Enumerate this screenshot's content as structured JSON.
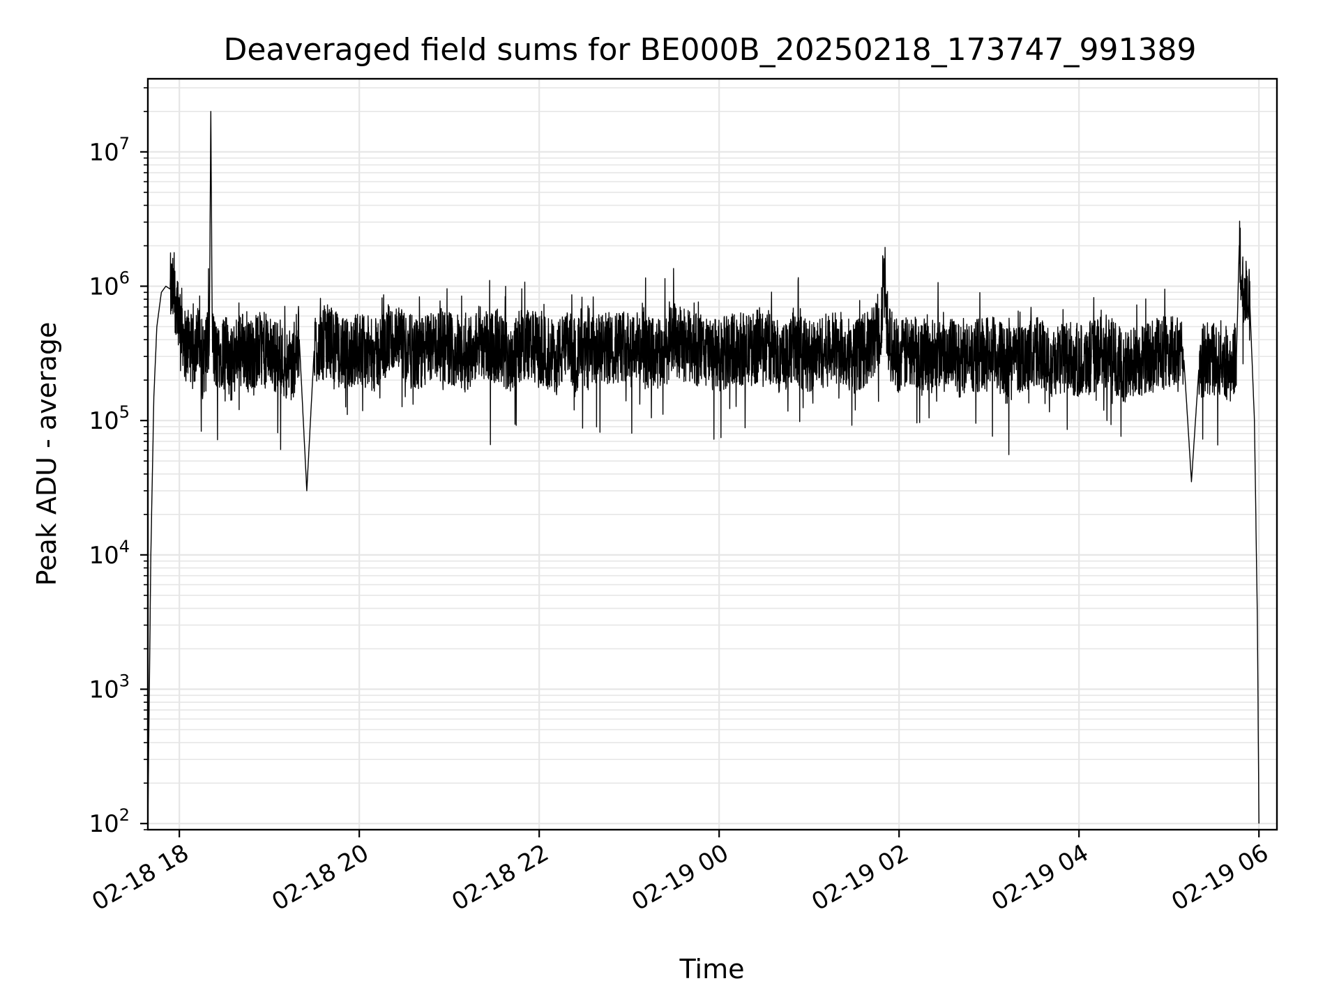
{
  "chart_data": {
    "type": "line",
    "title": "Deaveraged field sums for BE000B_20250218_173747_991389",
    "xlabel": "Time",
    "ylabel": "Peak ADU - average",
    "y_scale": "log",
    "ylim": [
      90,
      35000000
    ],
    "xlim": [
      "2025-02-18 17:39",
      "2025-02-19 06:12"
    ],
    "grid": true,
    "series_color": "#000000",
    "grid_color": "#e6e6e6",
    "x_ticks": [
      {
        "value": "2025-02-18 18:00",
        "label": "02-18 18"
      },
      {
        "value": "2025-02-18 20:00",
        "label": "02-18 20"
      },
      {
        "value": "2025-02-18 22:00",
        "label": "02-18 22"
      },
      {
        "value": "2025-02-19 00:00",
        "label": "02-19 00"
      },
      {
        "value": "2025-02-19 02:00",
        "label": "02-19 02"
      },
      {
        "value": "2025-02-19 04:00",
        "label": "02-19 04"
      },
      {
        "value": "2025-02-19 06:00",
        "label": "02-19 06"
      }
    ],
    "y_ticks": [
      {
        "value": 100,
        "base": "10",
        "exp": "2"
      },
      {
        "value": 1000,
        "base": "10",
        "exp": "3"
      },
      {
        "value": 10000,
        "base": "10",
        "exp": "4"
      },
      {
        "value": 100000,
        "base": "10",
        "exp": "5"
      },
      {
        "value": 1000000,
        "base": "10",
        "exp": "6"
      },
      {
        "value": 10000000,
        "base": "10",
        "exp": "7"
      }
    ],
    "series": [
      {
        "x": [
          "2025-02-18 17:39",
          "2025-02-18 17:41",
          "2025-02-18 17:43",
          "2025-02-18 17:45",
          "2025-02-18 17:48",
          "2025-02-18 17:51",
          "2025-02-18 17:54",
          "2025-02-18 17:58",
          "2025-02-18 18:02",
          "2025-02-18 18:04",
          "2025-02-18 18:06",
          "2025-02-18 18:09",
          "2025-02-18 18:12",
          "2025-02-18 18:15",
          "2025-02-18 18:18",
          "2025-02-18 18:20",
          "2025-02-18 18:21",
          "2025-02-18 18:22",
          "2025-02-18 18:24",
          "2025-02-18 18:30",
          "2025-02-18 18:35",
          "2025-02-18 18:40",
          "2025-02-18 18:45",
          "2025-02-18 18:55",
          "2025-02-18 19:05",
          "2025-02-18 19:15",
          "2025-02-18 19:20",
          "2025-02-18 19:25",
          "2025-02-18 19:30",
          "2025-02-18 19:40",
          "2025-02-18 19:50",
          "2025-02-18 20:00",
          "2025-02-18 20:10",
          "2025-02-18 20:20",
          "2025-02-18 20:30",
          "2025-02-18 20:40",
          "2025-02-18 20:50",
          "2025-02-18 21:00",
          "2025-02-18 21:10",
          "2025-02-18 21:20",
          "2025-02-18 21:30",
          "2025-02-18 21:40",
          "2025-02-18 21:50",
          "2025-02-18 22:00",
          "2025-02-18 22:10",
          "2025-02-18 22:20",
          "2025-02-18 22:30",
          "2025-02-18 22:40",
          "2025-02-18 22:50",
          "2025-02-18 23:00",
          "2025-02-18 23:10",
          "2025-02-18 23:20",
          "2025-02-18 23:30",
          "2025-02-18 23:40",
          "2025-02-18 23:50",
          "2025-02-19 00:00",
          "2025-02-19 00:10",
          "2025-02-19 00:20",
          "2025-02-19 00:30",
          "2025-02-19 00:40",
          "2025-02-19 00:50",
          "2025-02-19 01:00",
          "2025-02-19 01:10",
          "2025-02-19 01:20",
          "2025-02-19 01:30",
          "2025-02-19 01:40",
          "2025-02-19 01:48",
          "2025-02-19 01:50",
          "2025-02-19 01:52",
          "2025-02-19 02:00",
          "2025-02-19 02:10",
          "2025-02-19 02:20",
          "2025-02-19 02:30",
          "2025-02-19 02:40",
          "2025-02-19 02:50",
          "2025-02-19 03:00",
          "2025-02-19 03:10",
          "2025-02-19 03:20",
          "2025-02-19 03:30",
          "2025-02-19 03:40",
          "2025-02-19 03:50",
          "2025-02-19 04:00",
          "2025-02-19 04:10",
          "2025-02-19 04:20",
          "2025-02-19 04:30",
          "2025-02-19 04:40",
          "2025-02-19 04:50",
          "2025-02-19 05:00",
          "2025-02-19 05:10",
          "2025-02-19 05:15",
          "2025-02-19 05:20",
          "2025-02-19 05:25",
          "2025-02-19 05:30",
          "2025-02-19 05:35",
          "2025-02-19 05:40",
          "2025-02-19 05:45",
          "2025-02-19 05:47",
          "2025-02-19 05:49",
          "2025-02-19 05:51",
          "2025-02-19 05:54",
          "2025-02-19 05:57",
          "2025-02-19 05:59",
          "2025-02-19 06:00"
        ],
        "y": [
          100,
          10000,
          150000,
          500000,
          900000,
          1000000,
          950000,
          800000,
          500000,
          350000,
          400000,
          300000,
          450000,
          250000,
          350000,
          400000,
          20000000,
          400000,
          300000,
          350000,
          250000,
          400000,
          300000,
          350000,
          300000,
          250000,
          400000,
          30000,
          350000,
          400000,
          300000,
          350000,
          300000,
          400000,
          350000,
          300000,
          380000,
          350000,
          300000,
          400000,
          350000,
          300000,
          380000,
          330000,
          300000,
          350000,
          300000,
          330000,
          350000,
          380000,
          330000,
          300000,
          400000,
          350000,
          330000,
          300000,
          350000,
          330000,
          380000,
          300000,
          350000,
          300000,
          330000,
          350000,
          300000,
          350000,
          500000,
          1800000,
          400000,
          300000,
          330000,
          300000,
          350000,
          280000,
          300000,
          330000,
          280000,
          300000,
          330000,
          280000,
          300000,
          280000,
          300000,
          330000,
          250000,
          280000,
          300000,
          330000,
          280000,
          35000,
          250000,
          300000,
          280000,
          300000,
          250000,
          300000,
          2300000,
          900000,
          1000000,
          700000,
          100000,
          3000,
          100
        ]
      }
    ]
  }
}
